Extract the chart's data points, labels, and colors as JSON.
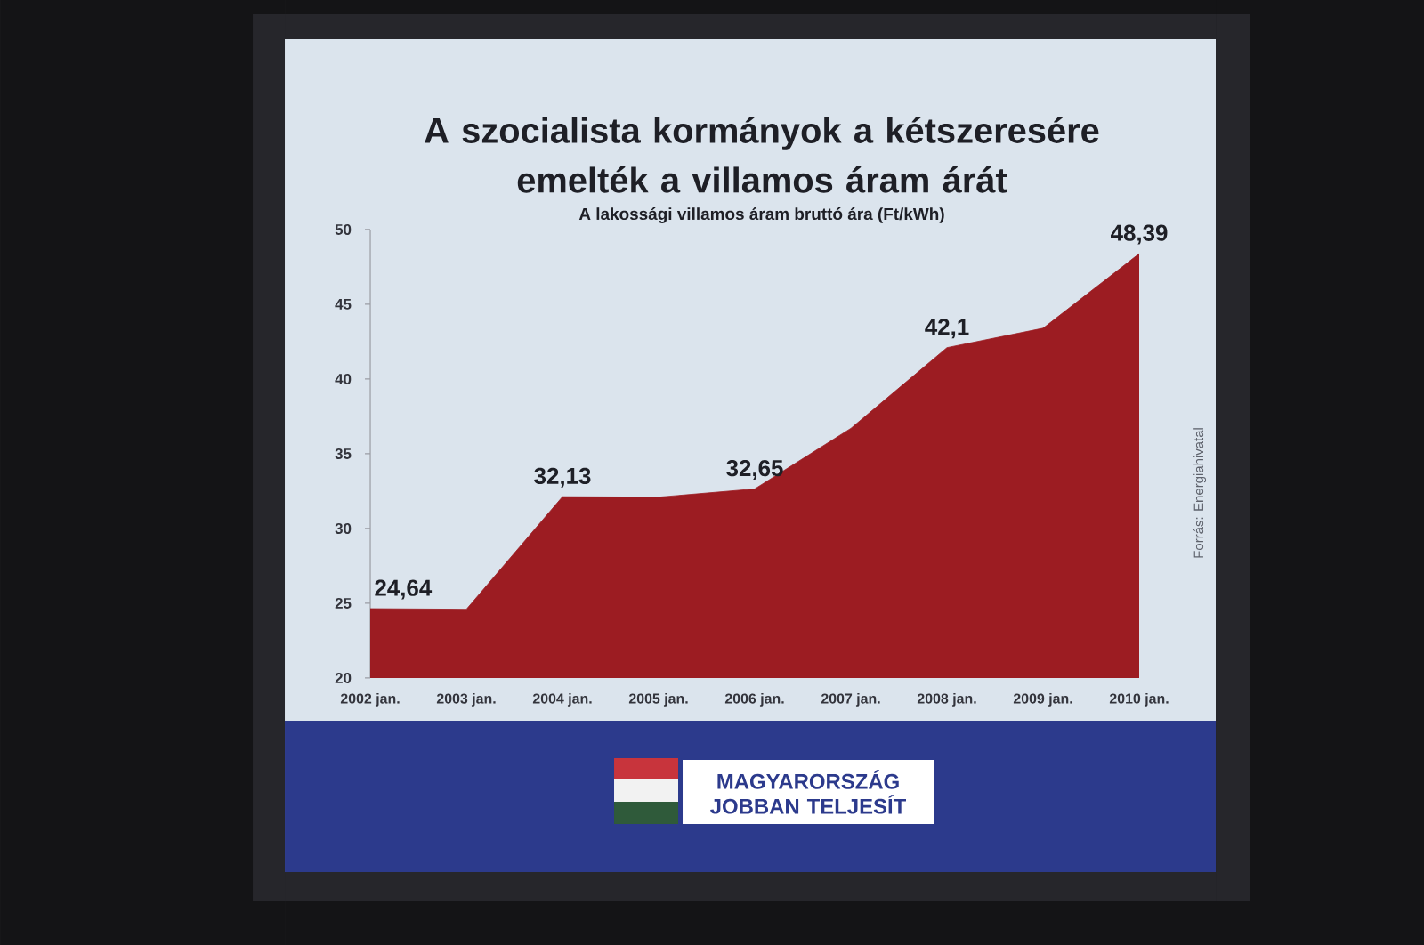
{
  "chart_data": {
    "type": "area",
    "title": "A szocialista kormányok a kétszeresére emelték a villamos áram árát",
    "subtitle": "A lakossági villamos áram bruttó ára (Ft/kWh)",
    "categories": [
      "2002 jan.",
      "2003 jan.",
      "2004 jan.",
      "2005 jan.",
      "2006 jan.",
      "2007 jan.",
      "2008 jan.",
      "2009 jan.",
      "2010 jan."
    ],
    "values": [
      24.64,
      24.6,
      32.13,
      32.1,
      32.65,
      36.7,
      42.1,
      43.4,
      48.39
    ],
    "value_labels": [
      "24,64",
      null,
      "32,13",
      null,
      "32,65",
      null,
      "42,1",
      null,
      "48,39"
    ],
    "color": "#9c1c22",
    "ylim": [
      20,
      50
    ],
    "yticks": [
      20,
      25,
      30,
      35,
      40,
      45,
      50
    ],
    "annotations": [
      "Forrás: Energiahivatal",
      "MAGYARORSZÁG JOBBAN TELJESÍT"
    ]
  }
}
